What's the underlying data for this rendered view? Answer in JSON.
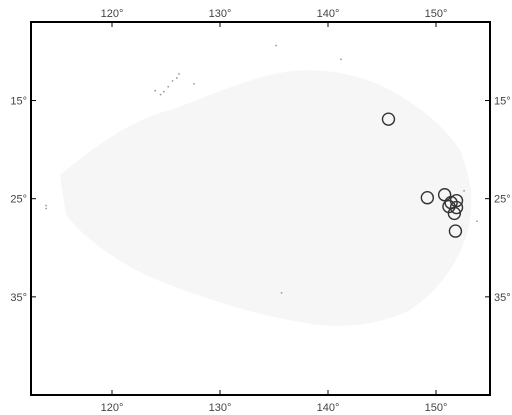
{
  "map": {
    "projection": "equirectangular",
    "lon_range": [
      112.5,
      155.0
    ],
    "lat_range": [
      7.0,
      45.0
    ],
    "lat_axis": "south-positive",
    "lon_ticks": [
      {
        "value": 120,
        "label": "120°"
      },
      {
        "value": 130,
        "label": "130°"
      },
      {
        "value": 140,
        "label": "140°"
      },
      {
        "value": 150,
        "label": "150°"
      }
    ],
    "lat_ticks": [
      {
        "value": 15,
        "label": "15°"
      },
      {
        "value": 25,
        "label": "25°"
      },
      {
        "value": 35,
        "label": "35°"
      }
    ],
    "colors": {
      "frame": "#000000",
      "background": "#ffffff",
      "land": "#f6f6f6",
      "marker": "#333333",
      "speck": "#9a9a9a"
    },
    "markers": [
      {
        "lon": 145.6,
        "lat": 16.9
      },
      {
        "lon": 149.2,
        "lat": 24.9
      },
      {
        "lon": 150.8,
        "lat": 24.6
      },
      {
        "lon": 151.4,
        "lat": 25.4
      },
      {
        "lon": 151.9,
        "lat": 25.2
      },
      {
        "lon": 151.2,
        "lat": 25.8
      },
      {
        "lon": 151.9,
        "lat": 25.9
      },
      {
        "lon": 151.7,
        "lat": 26.5
      },
      {
        "lon": 151.8,
        "lat": 28.3
      }
    ],
    "specks": [
      {
        "lon": 124.0,
        "lat": 14.0
      },
      {
        "lon": 124.5,
        "lat": 14.4
      },
      {
        "lon": 124.8,
        "lat": 14.1
      },
      {
        "lon": 125.2,
        "lat": 13.6
      },
      {
        "lon": 125.6,
        "lat": 13.0
      },
      {
        "lon": 126.0,
        "lat": 12.7
      },
      {
        "lon": 126.2,
        "lat": 12.3
      },
      {
        "lon": 127.6,
        "lat": 13.3
      },
      {
        "lon": 135.2,
        "lat": 9.4
      },
      {
        "lon": 141.2,
        "lat": 10.8
      },
      {
        "lon": 113.9,
        "lat": 25.7
      },
      {
        "lon": 113.9,
        "lat": 26.0
      },
      {
        "lon": 152.6,
        "lat": 24.2
      },
      {
        "lon": 153.8,
        "lat": 27.3
      },
      {
        "lon": 135.7,
        "lat": 34.6
      }
    ]
  }
}
